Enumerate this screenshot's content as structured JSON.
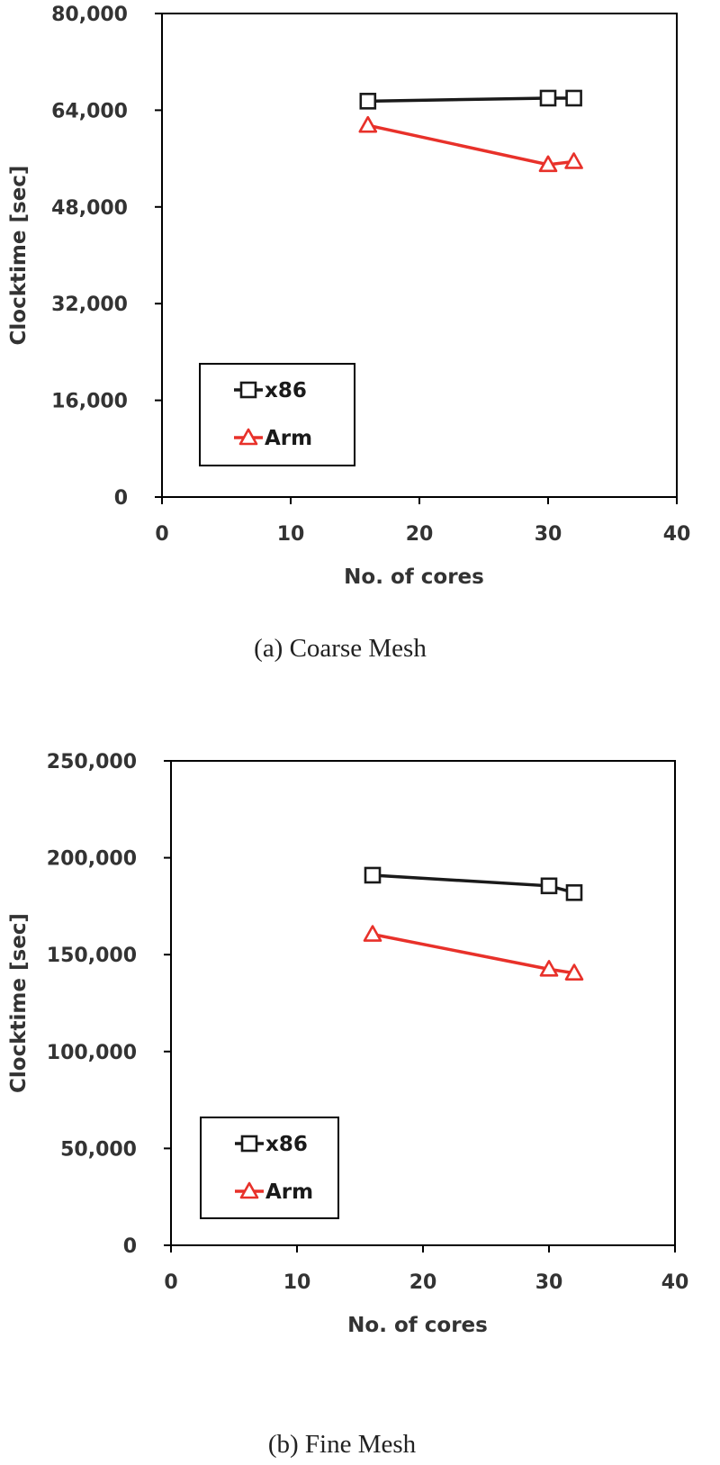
{
  "chart_data": [
    {
      "type": "line",
      "caption": "(a)  Coarse  Mesh",
      "xlabel": "No. of cores",
      "ylabel": "Clocktime [sec]",
      "xlim": [
        0,
        40
      ],
      "ylim": [
        0,
        80000
      ],
      "xticks": [
        0,
        10,
        20,
        30,
        40
      ],
      "yticks": [
        0,
        16000,
        32000,
        48000,
        64000,
        80000
      ],
      "xtick_labels": [
        "0",
        "10",
        "20",
        "30",
        "40"
      ],
      "ytick_labels": [
        "0",
        "16,000",
        "32,000",
        "48,000",
        "64,000",
        "80,000"
      ],
      "grid": false,
      "legend_position": "bottom-left",
      "series": [
        {
          "name": "x86",
          "marker": "square",
          "color": "#1a1a1a",
          "x": [
            16,
            30,
            32
          ],
          "values": [
            65500,
            66000,
            66000
          ]
        },
        {
          "name": "Arm",
          "marker": "triangle",
          "color": "#e8312a",
          "x": [
            16,
            30,
            32
          ],
          "values": [
            61500,
            55000,
            55500
          ]
        }
      ]
    },
    {
      "type": "line",
      "caption": "(b)  Fine  Mesh",
      "xlabel": "No. of cores",
      "ylabel": "Clocktime [sec]",
      "xlim": [
        0,
        40
      ],
      "ylim": [
        0,
        250000
      ],
      "xticks": [
        0,
        10,
        20,
        30,
        40
      ],
      "yticks": [
        0,
        50000,
        100000,
        150000,
        200000,
        250000
      ],
      "xtick_labels": [
        "0",
        "10",
        "20",
        "30",
        "40"
      ],
      "ytick_labels": [
        "0",
        "50,000",
        "100,000",
        "150,000",
        "200,000",
        "250,000"
      ],
      "grid": false,
      "legend_position": "bottom-left",
      "series": [
        {
          "name": "x86",
          "marker": "square",
          "color": "#1a1a1a",
          "x": [
            16,
            30,
            32
          ],
          "values": [
            191000,
            185500,
            182000
          ]
        },
        {
          "name": "Arm",
          "marker": "triangle",
          "color": "#e8312a",
          "x": [
            16,
            30,
            32
          ],
          "values": [
            160500,
            142500,
            140500
          ]
        }
      ]
    }
  ]
}
